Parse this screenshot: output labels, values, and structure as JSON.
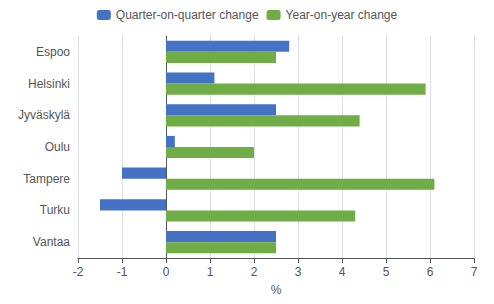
{
  "chart_data": {
    "type": "bar",
    "orientation": "horizontal",
    "categories": [
      "Espoo",
      "Helsinki",
      "Jyväskylä",
      "Oulu",
      "Tampere",
      "Turku",
      "Vantaa"
    ],
    "series": [
      {
        "name": "Quarter-on-quarter change",
        "color": "#4472C4",
        "values": [
          2.8,
          1.1,
          2.5,
          0.2,
          -1.0,
          -1.5,
          2.5
        ]
      },
      {
        "name": "Year-on-year change",
        "color": "#70AD47",
        "values": [
          2.5,
          5.9,
          4.4,
          2.0,
          6.1,
          4.3,
          2.5
        ]
      }
    ],
    "xlabel": "%",
    "xlim": [
      -2,
      7
    ],
    "xticks": [
      -2,
      -1,
      0,
      1,
      2,
      3,
      4,
      5,
      6,
      7
    ],
    "grid": true,
    "legend": "top"
  }
}
